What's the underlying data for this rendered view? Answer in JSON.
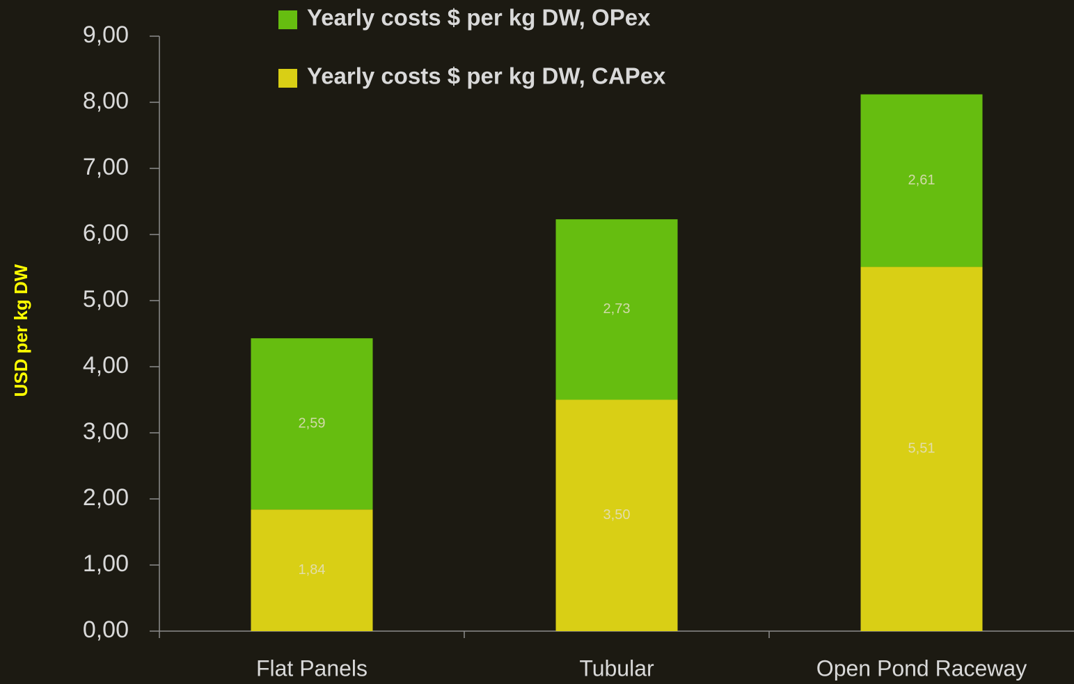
{
  "chart_data": {
    "type": "stacked-bar",
    "y_label": "USD per kg DW",
    "categories": [
      "Flat Panels",
      "Tubular",
      "Open Pond Raceway"
    ],
    "series": [
      {
        "name": "Yearly costs $ per kg DW, CAPex",
        "color": "#d9cf15",
        "values": [
          1.84,
          3.5,
          5.51
        ],
        "value_labels": [
          "1,84",
          "3,50",
          "5,51"
        ]
      },
      {
        "name": "Yearly costs $ per kg DW, OPex",
        "color": "#66bd10",
        "values": [
          2.59,
          2.73,
          2.61
        ],
        "value_labels": [
          "2,59",
          "2,73",
          "2,61"
        ]
      }
    ],
    "ylim": [
      0,
      9
    ],
    "yticks": [
      {
        "value": 0,
        "label": "0,00"
      },
      {
        "value": 1,
        "label": "1,00"
      },
      {
        "value": 2,
        "label": "2,00"
      },
      {
        "value": 3,
        "label": "3,00"
      },
      {
        "value": 4,
        "label": "4,00"
      },
      {
        "value": 5,
        "label": "5,00"
      },
      {
        "value": 6,
        "label": "6,00"
      },
      {
        "value": 7,
        "label": "7,00"
      },
      {
        "value": 8,
        "label": "8,00"
      },
      {
        "value": 9,
        "label": "9,00"
      }
    ],
    "legend": "top"
  }
}
